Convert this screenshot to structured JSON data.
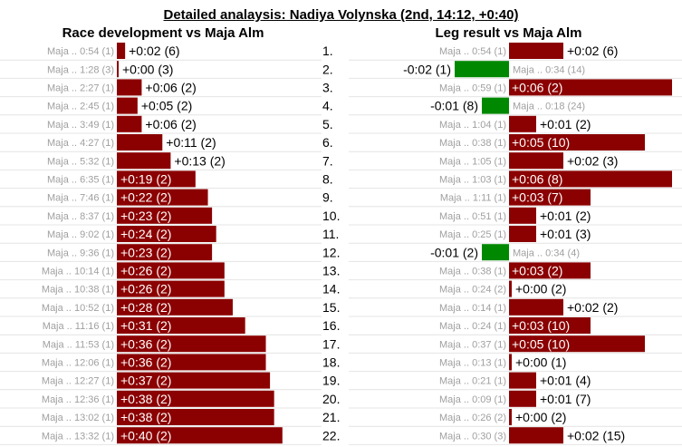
{
  "title": "Detailed analaysis: Nadiya Volynska (2nd, 14:12, +0:40)",
  "colors": {
    "behind": "#8b0000",
    "ahead": "#008800",
    "grid": "#e4e4e4",
    "ref_text": "#a0a0a0"
  },
  "chart_data": [
    {
      "type": "bar",
      "title": "Race development vs Maja Alm",
      "categories": [
        "1.",
        "2.",
        "3.",
        "4.",
        "5.",
        "6.",
        "7.",
        "8.",
        "9.",
        "10.",
        "11.",
        "12.",
        "13.",
        "14.",
        "15.",
        "16.",
        "17.",
        "18.",
        "19.",
        "20.",
        "21.",
        "22."
      ],
      "reference_labels": [
        "Maja .. 0:54 (1)",
        "Maja .. 1:28 (3)",
        "Maja .. 2:27 (1)",
        "Maja .. 2:45 (1)",
        "Maja .. 3:49 (1)",
        "Maja .. 4:27 (1)",
        "Maja .. 5:32 (1)",
        "Maja .. 6:35 (1)",
        "Maja .. 7:46 (1)",
        "Maja .. 8:37 (1)",
        "Maja .. 9:02 (1)",
        "Maja .. 9:36 (1)",
        "Maja .. 10:14 (1)",
        "Maja .. 10:38 (1)",
        "Maja .. 10:52 (1)",
        "Maja .. 11:16 (1)",
        "Maja .. 11:53 (1)",
        "Maja .. 12:06 (1)",
        "Maja .. 12:27 (1)",
        "Maja .. 12:36 (1)",
        "Maja .. 13:02 (1)",
        "Maja .. 13:32 (1)"
      ],
      "values": [
        2,
        0,
        6,
        5,
        6,
        11,
        13,
        19,
        22,
        23,
        24,
        23,
        26,
        26,
        28,
        31,
        36,
        36,
        37,
        38,
        38,
        40
      ],
      "value_labels": [
        "+0:02 (6)",
        "+0:00 (3)",
        "+0:06 (2)",
        "+0:05 (2)",
        "+0:06 (2)",
        "+0:11 (2)",
        "+0:13 (2)",
        "+0:19 (2)",
        "+0:22 (2)",
        "+0:23 (2)",
        "+0:24 (2)",
        "+0:23 (2)",
        "+0:26 (2)",
        "+0:26 (2)",
        "+0:28 (2)",
        "+0:31 (2)",
        "+0:36 (2)",
        "+0:36 (2)",
        "+0:37 (2)",
        "+0:38 (2)",
        "+0:38 (2)",
        "+0:40 (2)"
      ]
    },
    {
      "type": "bar",
      "title": "Leg result vs Maja Alm",
      "categories": [
        "1.",
        "2.",
        "3.",
        "4.",
        "5.",
        "6.",
        "7.",
        "8.",
        "9.",
        "10.",
        "11.",
        "12.",
        "13.",
        "14.",
        "15.",
        "16.",
        "17.",
        "18.",
        "19.",
        "20.",
        "21.",
        "22."
      ],
      "reference_labels": [
        "Maja .. 0:54 (1)",
        "Maja .. 0:34 (14)",
        "Maja .. 0:59 (1)",
        "Maja .. 0:18 (24)",
        "Maja .. 1:04 (1)",
        "Maja .. 0:38 (1)",
        "Maja .. 1:05 (1)",
        "Maja .. 1:03 (1)",
        "Maja .. 1:11 (1)",
        "Maja .. 0:51 (1)",
        "Maja .. 0:25 (1)",
        "Maja .. 0:34 (4)",
        "Maja .. 0:38 (1)",
        "Maja .. 0:24 (2)",
        "Maja .. 0:14 (1)",
        "Maja .. 0:24 (1)",
        "Maja .. 0:37 (1)",
        "Maja .. 0:13 (1)",
        "Maja .. 0:21 (1)",
        "Maja .. 0:09 (1)",
        "Maja .. 0:26 (2)",
        "Maja .. 0:30 (3)"
      ],
      "values": [
        2,
        -2,
        6,
        -1,
        1,
        5,
        2,
        6,
        3,
        1,
        1,
        -1,
        3,
        0,
        2,
        3,
        5,
        0,
        1,
        1,
        0,
        2
      ],
      "value_labels": [
        "+0:02 (6)",
        "-0:02 (1)",
        "+0:06 (2)",
        "-0:01 (8)",
        "+0:01 (2)",
        "+0:05 (10)",
        "+0:02 (3)",
        "+0:06 (8)",
        "+0:03 (7)",
        "+0:01 (2)",
        "+0:01 (3)",
        "-0:01 (2)",
        "+0:03 (2)",
        "+0:00 (2)",
        "+0:02 (2)",
        "+0:03 (10)",
        "+0:05 (10)",
        "+0:00 (1)",
        "+0:01 (4)",
        "+0:01 (7)",
        "+0:00 (2)",
        "+0:02 (15)"
      ]
    }
  ]
}
